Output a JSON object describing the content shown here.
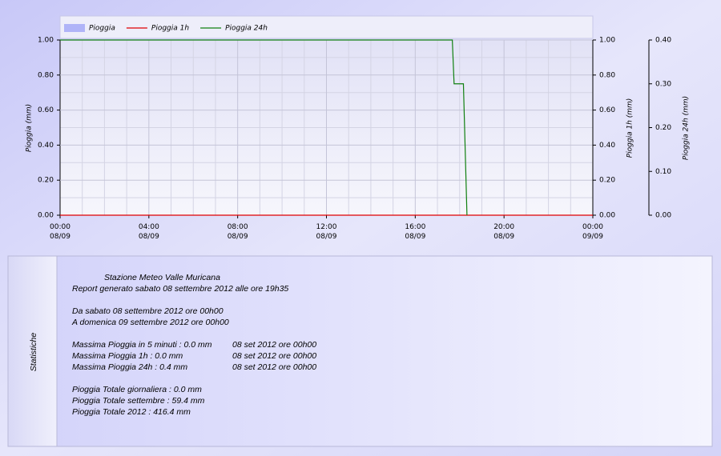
{
  "chart_data": {
    "type": "line",
    "legend": "top",
    "grid": true,
    "xlim": [
      0,
      24
    ],
    "xticks": [
      {
        "value": 0,
        "label": "00:00\n08/09"
      },
      {
        "value": 4,
        "label": "04:00\n08/09"
      },
      {
        "value": 8,
        "label": "08:00\n08/09"
      },
      {
        "value": 12,
        "label": "12:00\n08/09"
      },
      {
        "value": 16,
        "label": "16:00\n08/09"
      },
      {
        "value": 20,
        "label": "20:00\n08/09"
      },
      {
        "value": 24,
        "label": "00:00\n09/09"
      }
    ],
    "ylabel": "Pioggia (mm)",
    "ylim": [
      0,
      1
    ],
    "yticks": [
      {
        "value": 0,
        "label": "0.00"
      },
      {
        "value": 0.2,
        "label": "0.20"
      },
      {
        "value": 0.4,
        "label": "0.40"
      },
      {
        "value": 0.6,
        "label": "0.60"
      },
      {
        "value": 0.8,
        "label": "0.80"
      },
      {
        "value": 1,
        "label": "1.00"
      }
    ],
    "y2label": "Pioggia 1h (mm)",
    "y2lim": [
      0,
      1
    ],
    "y2ticks": [
      {
        "value": 0,
        "label": "0.00"
      },
      {
        "value": 0.2,
        "label": "0.20"
      },
      {
        "value": 0.4,
        "label": "0.40"
      },
      {
        "value": 0.6,
        "label": "0.60"
      },
      {
        "value": 0.8,
        "label": "0.80"
      },
      {
        "value": 1,
        "label": "1.00"
      }
    ],
    "y3label": "Pioggia 24h (mm)",
    "y3lim": [
      0,
      0.4
    ],
    "y3ticks": [
      {
        "value": 0,
        "label": "0.00"
      },
      {
        "value": 0.1,
        "label": "0.10"
      },
      {
        "value": 0.2,
        "label": "0.20"
      },
      {
        "value": 0.3,
        "label": "0.30"
      },
      {
        "value": 0.4,
        "label": "0.40"
      }
    ],
    "series": [
      {
        "name": "Pioggia",
        "color": "#b0b4f8",
        "area": true,
        "axis": "y",
        "x": [
          0,
          24
        ],
        "values": [
          0,
          0
        ]
      },
      {
        "name": "Pioggia 1h",
        "color": "#e00000",
        "axis": "y2",
        "x": [
          0,
          24
        ],
        "values": [
          0,
          0
        ]
      },
      {
        "name": "Pioggia 24h",
        "color": "#108010",
        "axis": "y3",
        "x": [
          0,
          17.67,
          17.75,
          18.17,
          18.33
        ],
        "values": [
          0.4,
          0.4,
          0.3,
          0.3,
          0
        ]
      }
    ]
  },
  "stats": {
    "label": "Statistiche",
    "station": "Stazione Meteo Valle Muricana",
    "report": "Report generato sabato 08 settembre 2012 alle ore 19h35",
    "period": [
      "Da sabato 08 settembre 2012 ore 00h00",
      "A domenica 09 settembre 2012 ore 00h00"
    ],
    "maxima": [
      [
        "Massima Pioggia in 5 minuti : 0.0 mm",
        "08 set 2012 ore 00h00"
      ],
      [
        "Massima Pioggia 1h  : 0.0 mm",
        "08 set 2012 ore 00h00"
      ],
      [
        "Massima Pioggia 24h : 0.4 mm",
        "08 set 2012 ore 00h00"
      ]
    ],
    "totals": [
      "Pioggia Totale giornaliera : 0.0 mm",
      "Pioggia Totale settembre : 59.4 mm",
      "Pioggia Totale 2012 : 416.4 mm"
    ]
  }
}
